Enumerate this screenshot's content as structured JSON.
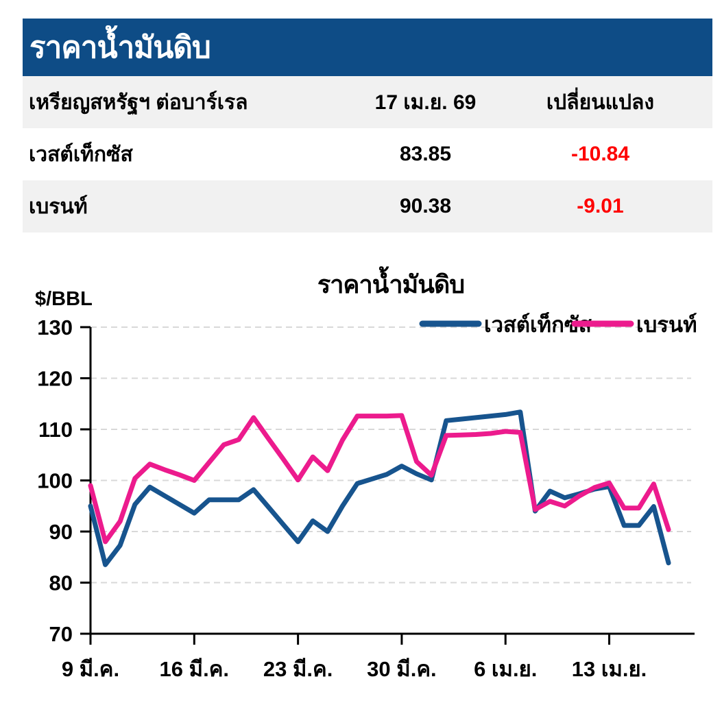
{
  "header": {
    "title": "ราคาน้ำมันดิบ",
    "background_color": "#0e4c86",
    "text_color": "#ffffff"
  },
  "table": {
    "columns": [
      "เหรียญสหรัฐฯ ต่อบาร์เรล",
      "17 เม.ย. 69",
      "เปลี่ยนแปลง"
    ],
    "rows": [
      {
        "name": "เวสต์เท็กซัส",
        "price": "83.85",
        "change": "-10.84"
      },
      {
        "name": "เบรนท์",
        "price": "90.38",
        "change": "-9.01"
      }
    ],
    "change_color": "#fe0000",
    "stripe_color": "#f1f1f1"
  },
  "chart_data": {
    "type": "line",
    "title": "ราคาน้ำมันดิบ",
    "ylabel": "$/BBL",
    "ylim": [
      70,
      130
    ],
    "ytick_step": 10,
    "yticks": [
      70,
      80,
      90,
      100,
      110,
      120,
      130
    ],
    "grid": true,
    "grid_color": "#d8d8d8",
    "axis_color": "#000000",
    "legend_position": "top-right",
    "x_tick_labels": [
      "9 มี.ค.",
      "16 มี.ค.",
      "23 มี.ค.",
      "30 มี.ค.",
      "6 เม.ย.",
      "13 เม.ย."
    ],
    "x_tick_indices": [
      0,
      7,
      14,
      21,
      28,
      35
    ],
    "series": [
      {
        "name": "เวสต์เท็กซัส",
        "color": "#17548e",
        "values": [
          95.0,
          83.5,
          87.3,
          95.3,
          98.7,
          97.0,
          95.3,
          93.6,
          96.2,
          96.2,
          96.2,
          98.2,
          94.8,
          91.4,
          88.0,
          92.1,
          90.0,
          95.0,
          99.4,
          100.3,
          101.2,
          102.8,
          101.3,
          100.1,
          111.7,
          112.0,
          112.3,
          112.6,
          112.9,
          113.4,
          94.0,
          97.9,
          96.6,
          97.4,
          98.3,
          98.8,
          91.2,
          91.2,
          94.9,
          83.85
        ]
      },
      {
        "name": "เบรนท์",
        "color": "#ec1b8d",
        "values": [
          99.0,
          88.0,
          92.0,
          100.4,
          103.2,
          102.1,
          101.1,
          100.0,
          103.5,
          107.0,
          108.0,
          112.3,
          108.2,
          104.2,
          100.1,
          104.6,
          101.9,
          107.9,
          112.6,
          112.6,
          112.6,
          112.7,
          103.7,
          101.0,
          108.8,
          108.9,
          109.0,
          109.2,
          109.6,
          109.4,
          94.3,
          95.9,
          95.0,
          97.0,
          98.6,
          99.5,
          94.6,
          94.6,
          99.3,
          90.38
        ]
      }
    ]
  }
}
